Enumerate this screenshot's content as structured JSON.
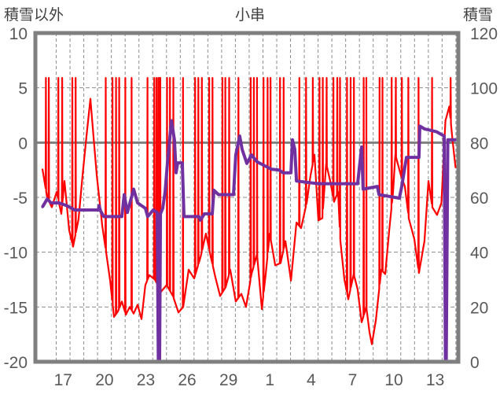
{
  "chart_data": {
    "type": "line",
    "title": "小串",
    "ylabel_left": "積雪以外",
    "ylabel_right": "積雪",
    "xlim": [
      15.94,
      46.2
    ],
    "ylim_left": [
      -20,
      10
    ],
    "ylim_right": [
      0,
      120
    ],
    "yticks_left": [
      10,
      5,
      0,
      -5,
      -10,
      -15,
      -20
    ],
    "yticks_right": [
      120,
      100,
      80,
      60,
      40,
      20,
      0
    ],
    "xticks": [
      {
        "day": 17.5,
        "label": "17"
      },
      {
        "day": 20.5,
        "label": "20"
      },
      {
        "day": 23.5,
        "label": "23"
      },
      {
        "day": 26.5,
        "label": "26"
      },
      {
        "day": 29.5,
        "label": "29"
      },
      {
        "day": 32.5,
        "label": "1"
      },
      {
        "day": 35.5,
        "label": "4"
      },
      {
        "day": 38.5,
        "label": "7"
      },
      {
        "day": 41.5,
        "label": "10"
      },
      {
        "day": 44.5,
        "label": "13"
      }
    ],
    "grid": "dashed, daily vertical lines and every 5 units horizontal",
    "series": [
      {
        "name": "積雪以外",
        "axis": "left",
        "color": "#ff0000",
        "spike_value": 5.9,
        "spike_days": [
          16.25,
          16.46,
          17.15,
          17.43,
          18.17,
          18.41,
          20.59,
          21.08,
          21.34,
          21.57,
          22.01,
          22.47,
          23.62,
          24.11,
          24.27,
          24.41,
          24.5,
          24.55,
          25.04,
          25.25,
          25.5,
          26.2,
          27.08,
          27.31,
          27.57,
          28.1,
          28.34,
          29.06,
          29.27,
          29.55,
          30.22,
          31.11,
          31.34,
          31.57,
          32.04,
          32.34,
          32.55,
          33.24,
          33.5,
          34.64,
          35.13,
          35.62,
          36.1,
          36.34,
          36.62,
          37.11,
          37.39,
          37.59,
          38.1,
          38.36,
          38.6,
          39.31,
          39.5,
          40.46,
          40.67,
          41.34,
          41.64,
          42.08,
          42.55,
          43.29,
          44.27,
          45.62
        ],
        "points": [
          [
            16.0,
            -2.4
          ],
          [
            16.34,
            -5.0
          ],
          [
            16.68,
            -5.9
          ],
          [
            17.03,
            -4.5
          ],
          [
            17.37,
            -6.5
          ],
          [
            17.6,
            -3.5
          ],
          [
            17.94,
            -8.0
          ],
          [
            18.22,
            -9.5
          ],
          [
            18.62,
            -7.0
          ],
          [
            18.91,
            -3.0
          ],
          [
            19.19,
            0.5
          ],
          [
            19.48,
            4.0
          ],
          [
            19.71,
            0.5
          ],
          [
            19.94,
            -3.0
          ],
          [
            20.16,
            -5.5
          ],
          [
            20.34,
            -7.6
          ],
          [
            20.62,
            -10.0
          ],
          [
            20.91,
            -12.6
          ],
          [
            21.19,
            -15.9
          ],
          [
            21.48,
            -15.4
          ],
          [
            21.76,
            -14.5
          ],
          [
            22.05,
            -15.7
          ],
          [
            22.33,
            -15.0
          ],
          [
            22.62,
            -15.6
          ],
          [
            22.9,
            -14.8
          ],
          [
            23.19,
            -16.1
          ],
          [
            23.47,
            -13.0
          ],
          [
            23.76,
            -12.1
          ],
          [
            24.16,
            -12.5
          ],
          [
            24.61,
            -13.6
          ],
          [
            25.01,
            -13.0
          ],
          [
            25.47,
            -14.0
          ],
          [
            25.87,
            -15.5
          ],
          [
            26.21,
            -15.0
          ],
          [
            26.61,
            -11.6
          ],
          [
            27.01,
            -12.4
          ],
          [
            27.46,
            -10.5
          ],
          [
            27.86,
            -8.3
          ],
          [
            28.21,
            -10.4
          ],
          [
            28.55,
            -12.3
          ],
          [
            28.89,
            -14.0
          ],
          [
            29.29,
            -13.2
          ],
          [
            29.63,
            -11.6
          ],
          [
            30.03,
            -14.5
          ],
          [
            30.43,
            -13.8
          ],
          [
            30.77,
            -15.0
          ],
          [
            31.17,
            -12.0
          ],
          [
            31.57,
            -10.2
          ],
          [
            31.92,
            -15.2
          ],
          [
            32.2,
            -12.0
          ],
          [
            32.49,
            -8.3
          ],
          [
            32.89,
            -11.2
          ],
          [
            33.28,
            -11.0
          ],
          [
            33.63,
            -9.0
          ],
          [
            34.03,
            -12.6
          ],
          [
            34.43,
            -7.3
          ],
          [
            34.77,
            -7.8
          ],
          [
            35.17,
            -5.5
          ],
          [
            35.45,
            -3.0
          ],
          [
            35.74,
            -1.1
          ],
          [
            36.02,
            -7.1
          ],
          [
            36.31,
            -6.9
          ],
          [
            36.59,
            -1.9
          ],
          [
            36.88,
            -3.5
          ],
          [
            37.16,
            -5.4
          ],
          [
            37.45,
            -4.5
          ],
          [
            37.62,
            -9.0
          ],
          [
            37.91,
            -12.5
          ],
          [
            38.19,
            -14.3
          ],
          [
            38.59,
            -12.0
          ],
          [
            38.87,
            -13.4
          ],
          [
            39.16,
            -16.4
          ],
          [
            39.5,
            -15.0
          ],
          [
            39.73,
            -17.3
          ],
          [
            39.9,
            -18.4
          ],
          [
            40.19,
            -16.2
          ],
          [
            40.59,
            -11.6
          ],
          [
            40.87,
            -12.0
          ],
          [
            41.16,
            -8.0
          ],
          [
            41.44,
            -4.5
          ],
          [
            41.61,
            -1.1
          ],
          [
            42.01,
            -3.0
          ],
          [
            42.3,
            -4.0
          ],
          [
            42.58,
            -6.9
          ],
          [
            42.98,
            -8.8
          ],
          [
            43.32,
            -11.9
          ],
          [
            43.72,
            -9.0
          ],
          [
            44.01,
            -3.5
          ],
          [
            44.29,
            -5.9
          ],
          [
            44.63,
            -6.6
          ],
          [
            44.95,
            -5.5
          ],
          [
            45.24,
            2.0
          ],
          [
            45.52,
            3.3
          ],
          [
            45.75,
            0.3
          ],
          [
            45.98,
            -2.3
          ]
        ]
      },
      {
        "name": "積雪",
        "axis": "right",
        "color": "#7030a0",
        "points": [
          [
            16.0,
            56.5
          ],
          [
            16.34,
            59.4
          ],
          [
            16.63,
            58
          ],
          [
            17.2,
            58
          ],
          [
            17.77,
            57
          ],
          [
            18.34,
            55.4
          ],
          [
            20.05,
            55.4
          ],
          [
            20.11,
            57
          ],
          [
            20.22,
            55
          ],
          [
            20.45,
            53
          ],
          [
            21.76,
            53
          ],
          [
            21.93,
            61
          ],
          [
            22.16,
            54.5
          ],
          [
            22.62,
            63
          ],
          [
            22.9,
            58
          ],
          [
            23.47,
            56
          ],
          [
            23.64,
            53
          ],
          [
            24.04,
            55.4
          ],
          [
            24.33,
            54.5
          ],
          [
            24.41,
            0
          ],
          [
            24.5,
            0
          ],
          [
            24.56,
            54
          ],
          [
            24.73,
            56
          ],
          [
            24.9,
            62
          ],
          [
            25.07,
            72.6
          ],
          [
            25.36,
            88
          ],
          [
            25.58,
            81
          ],
          [
            25.7,
            69
          ],
          [
            25.81,
            72.6
          ],
          [
            26.15,
            72.6
          ],
          [
            26.27,
            53
          ],
          [
            27.35,
            53
          ],
          [
            27.46,
            51.7
          ],
          [
            27.75,
            54
          ],
          [
            28.32,
            54
          ],
          [
            28.44,
            62.6
          ],
          [
            28.78,
            61
          ],
          [
            29.86,
            61
          ],
          [
            30.03,
            75.5
          ],
          [
            30.31,
            82.4
          ],
          [
            30.49,
            77.5
          ],
          [
            30.83,
            72.4
          ],
          [
            31.17,
            75.5
          ],
          [
            31.57,
            73
          ],
          [
            32.03,
            71.8
          ],
          [
            32.6,
            70.3
          ],
          [
            33.17,
            70
          ],
          [
            33.46,
            69
          ],
          [
            34.03,
            69
          ],
          [
            34.14,
            81
          ],
          [
            34.31,
            77.5
          ],
          [
            34.43,
            66
          ],
          [
            36.02,
            65
          ],
          [
            38.87,
            65
          ],
          [
            39.16,
            78.4
          ],
          [
            39.27,
            63
          ],
          [
            40.3,
            64
          ],
          [
            40.42,
            61
          ],
          [
            41.9,
            59.7
          ],
          [
            42.07,
            64
          ],
          [
            42.41,
            74.6
          ],
          [
            43.32,
            74.6
          ],
          [
            43.38,
            86
          ],
          [
            43.72,
            85
          ],
          [
            44.58,
            84
          ],
          [
            45.15,
            82.4
          ],
          [
            45.24,
            0
          ],
          [
            45.3,
            0
          ],
          [
            45.41,
            81
          ],
          [
            45.98,
            81
          ]
        ]
      }
    ]
  }
}
